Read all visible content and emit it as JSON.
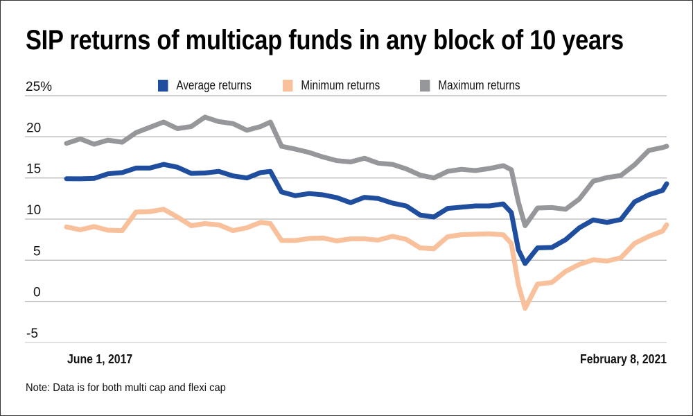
{
  "chart_data": {
    "type": "line",
    "title": "SIP returns of multicap funds in any block of 10 years",
    "xlabel": "",
    "ylabel": "",
    "x_unit": "days since June 1, 2017",
    "x_tick_labels": [
      "June 1, 2017",
      "February 8, 2021"
    ],
    "y_ticks": [
      25,
      20,
      15,
      10,
      5,
      0,
      -5
    ],
    "y_tick_labels": [
      "25%",
      "20",
      "15",
      "10",
      "5",
      "0",
      "-5"
    ],
    "ylim": [
      -5,
      25
    ],
    "xlim": [
      0,
      1348
    ],
    "grid": true,
    "legend_position": "top",
    "x": [
      0,
      31,
      62,
      93,
      125,
      156,
      187,
      218,
      249,
      280,
      311,
      342,
      374,
      405,
      436,
      458,
      483,
      514,
      545,
      576,
      607,
      638,
      669,
      700,
      732,
      763,
      794,
      825,
      856,
      887,
      918,
      950,
      981,
      999,
      1015,
      1030,
      1058,
      1090,
      1121,
      1152,
      1183,
      1214,
      1245,
      1276,
      1308,
      1339,
      1348
    ],
    "series": [
      {
        "name": "Average returns",
        "color": "#1f4e9e",
        "values": [
          14.8,
          15,
          15,
          15.5,
          15.6,
          16.1,
          16.3,
          16.7,
          16.3,
          15.5,
          15.5,
          15.9,
          15.3,
          15,
          15.6,
          15.7,
          13.4,
          12.9,
          13.1,
          12.9,
          12.5,
          12.1,
          12.7,
          12.5,
          11.9,
          11.5,
          10.6,
          10.3,
          11.3,
          11.4,
          11.5,
          11.7,
          11.9,
          10.8,
          6.2,
          4.5,
          6.6,
          6.6,
          7.5,
          8.9,
          9.8,
          9.7,
          10,
          12.1,
          12.9,
          13.4,
          14.4
        ]
      },
      {
        "name": "Minimum returns",
        "color": "#f9c09c",
        "values": [
          9,
          8.6,
          9.2,
          8.7,
          8.6,
          10.8,
          10.8,
          11.3,
          10.3,
          9.2,
          9.4,
          9.2,
          8.7,
          9,
          9.6,
          9.4,
          7.3,
          7.5,
          7.7,
          7.7,
          7.3,
          7.5,
          7.7,
          7.5,
          7.9,
          7.5,
          6.4,
          6.5,
          7.9,
          8.1,
          8.1,
          8.1,
          8.2,
          7.1,
          2,
          -0.9,
          2,
          2.4,
          3.7,
          4.5,
          5,
          4.8,
          5.4,
          7.1,
          7.9,
          8.5,
          9.2
        ]
      },
      {
        "name": "Maximum returns",
        "color": "#96979b",
        "values": [
          19.2,
          19.7,
          19,
          19.7,
          19.4,
          20.5,
          21.1,
          21.7,
          21.1,
          21.3,
          22.4,
          21.8,
          21.5,
          20.9,
          21.3,
          21.8,
          18.8,
          18.4,
          18.2,
          17.6,
          17.1,
          16.9,
          17.3,
          16.9,
          16.7,
          16.1,
          15.3,
          14.9,
          15.9,
          16.1,
          15.9,
          16.1,
          16.4,
          16.1,
          12.1,
          9.2,
          11.3,
          11.3,
          11.3,
          12.5,
          14.6,
          15,
          15.2,
          16.7,
          18.4,
          18.7,
          18.8
        ]
      }
    ],
    "note": "Note: Data is for both multi cap and flexi cap"
  }
}
